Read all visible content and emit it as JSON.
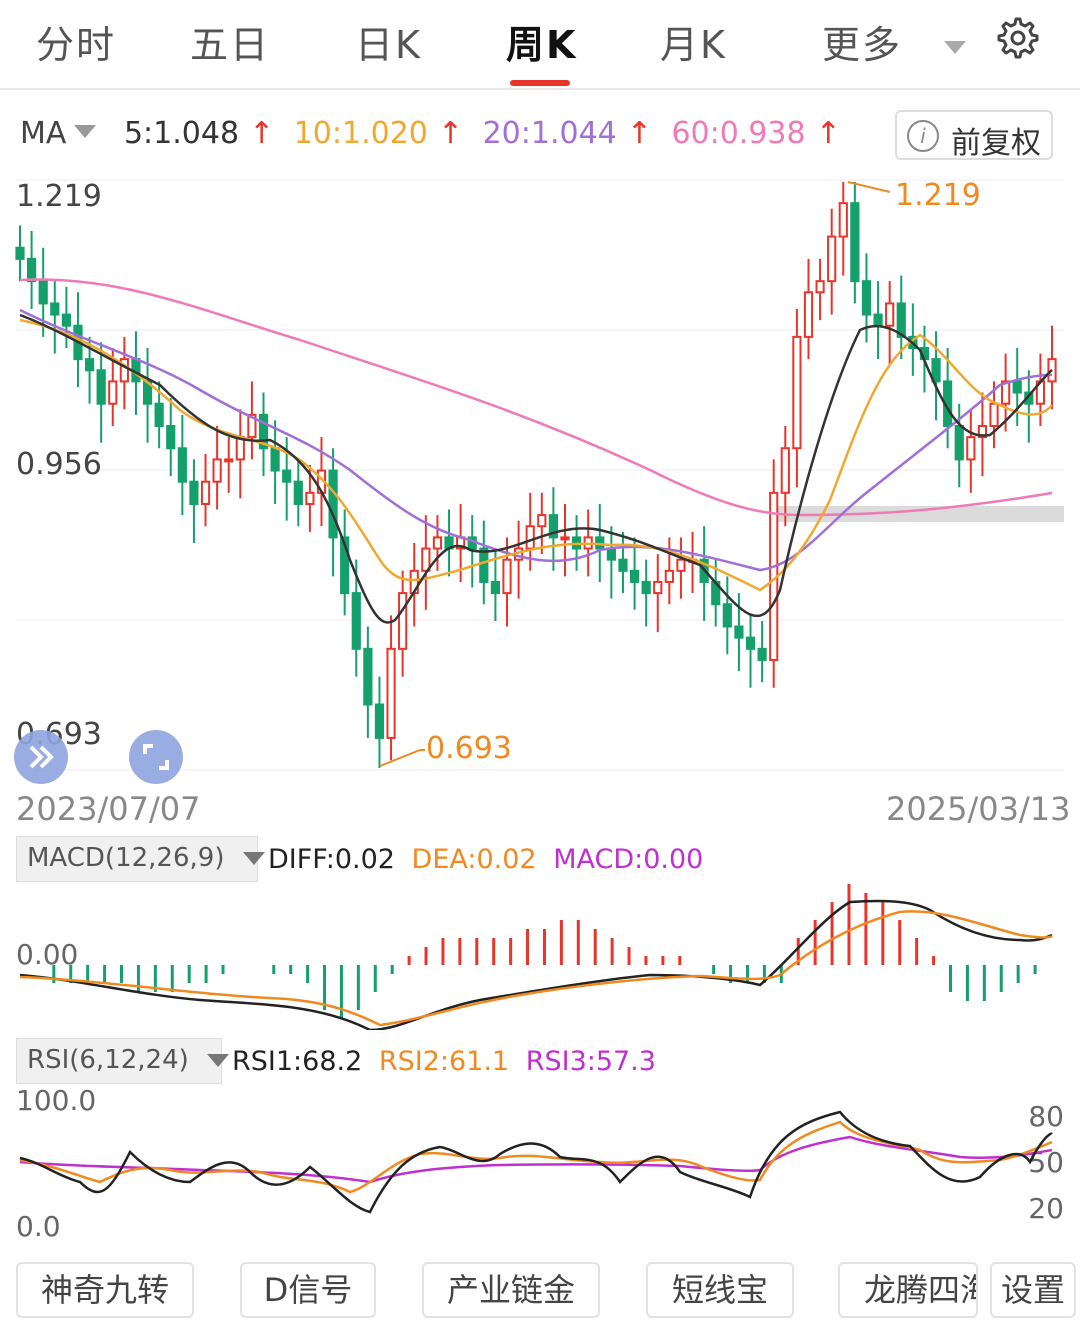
{
  "tabs": [
    {
      "label": "分时",
      "active": false
    },
    {
      "label": "五日",
      "active": false
    },
    {
      "label": "日K",
      "active": false
    },
    {
      "label": "周K",
      "active": true
    },
    {
      "label": "月K",
      "active": false
    },
    {
      "label": "更多",
      "active": false
    }
  ],
  "ma": {
    "label": "MA",
    "ma5": "5:1.048",
    "ma10": "10:1.020",
    "ma20": "20:1.044",
    "ma60": "60:0.938",
    "up_arrow": "↑",
    "adjust_button": "前复权"
  },
  "price_axis": {
    "top": "1.219",
    "mid": "0.956",
    "bottom": "0.693"
  },
  "annotations": {
    "high": "1.219",
    "low": "0.693"
  },
  "dates": {
    "start": "2023/07/07",
    "end": "2025/03/13"
  },
  "macd": {
    "label": "MACD(12,26,9)",
    "diff": "DIFF:0.02",
    "dea": "DEA:0.02",
    "macd": "MACD:0.00",
    "zero_label": "0.00"
  },
  "rsi": {
    "label": "RSI(6,12,24)",
    "rsi1": "RSI1:68.2",
    "rsi2": "RSI2:61.1",
    "rsi3": "RSI3:57.3",
    "y_top": "100.0",
    "y_bottom": "0.0",
    "r80": "80",
    "r50": "50",
    "r20": "20"
  },
  "bottom_buttons": [
    "神奇九转",
    "D信号",
    "产业链金",
    "短线宝",
    "龙腾四海",
    "设置"
  ],
  "colors": {
    "up": "#e8342a",
    "down": "#14a06a",
    "ma5": "#333333",
    "ma10": "#f0a830",
    "ma20": "#a070d8",
    "ma60": "#f07ab8",
    "dea": "#f08a20",
    "rsi3": "#c030d0",
    "accent": "#e8342a"
  },
  "chart_data": {
    "type": "candlestick",
    "price_range": [
      0.693,
      1.219
    ],
    "highest": 1.219,
    "lowest": 0.693,
    "close_series": [
      1.15,
      1.13,
      1.11,
      1.1,
      1.09,
      1.06,
      1.05,
      1.02,
      1.04,
      1.06,
      1.04,
      1.02,
      1.0,
      0.98,
      0.95,
      0.93,
      0.95,
      0.97,
      0.97,
      0.99,
      1.01,
      0.98,
      0.96,
      0.95,
      0.93,
      0.94,
      0.96,
      0.9,
      0.85,
      0.8,
      0.75,
      0.72,
      0.8,
      0.85,
      0.87,
      0.89,
      0.9,
      0.89,
      0.9,
      0.89,
      0.86,
      0.85,
      0.88,
      0.89,
      0.91,
      0.92,
      0.9,
      0.9,
      0.89,
      0.9,
      0.89,
      0.88,
      0.87,
      0.86,
      0.85,
      0.86,
      0.87,
      0.88,
      0.88,
      0.86,
      0.84,
      0.82,
      0.81,
      0.8,
      0.79,
      0.94,
      0.98,
      1.08,
      1.12,
      1.13,
      1.17,
      1.2,
      1.13,
      1.1,
      1.09,
      1.11,
      1.08,
      1.07,
      1.06,
      1.04,
      1.0,
      0.97,
      0.99,
      1.0,
      1.02,
      1.04,
      1.03,
      1.02,
      1.04,
      1.06
    ],
    "macd_hist": [
      0,
      0,
      -0.02,
      -0.02,
      -0.02,
      -0.02,
      -0.02,
      -0.03,
      -0.03,
      -0.03,
      -0.02,
      -0.02,
      -0.01,
      0,
      0,
      -0.01,
      -0.01,
      -0.02,
      -0.05,
      -0.06,
      -0.05,
      -0.03,
      -0.01,
      0.01,
      0.02,
      0.03,
      0.03,
      0.03,
      0.03,
      0.03,
      0.04,
      0.04,
      0.05,
      0.05,
      0.04,
      0.03,
      0.02,
      0.01,
      0.01,
      0.01,
      0,
      -0.01,
      -0.02,
      -0.02,
      -0.02,
      -0.02,
      0.03,
      0.05,
      0.07,
      0.09,
      0.08,
      0.07,
      0.05,
      0.03,
      0.01,
      -0.03,
      -0.04,
      -0.04,
      -0.03,
      -0.02,
      -0.01,
      0
    ]
  }
}
